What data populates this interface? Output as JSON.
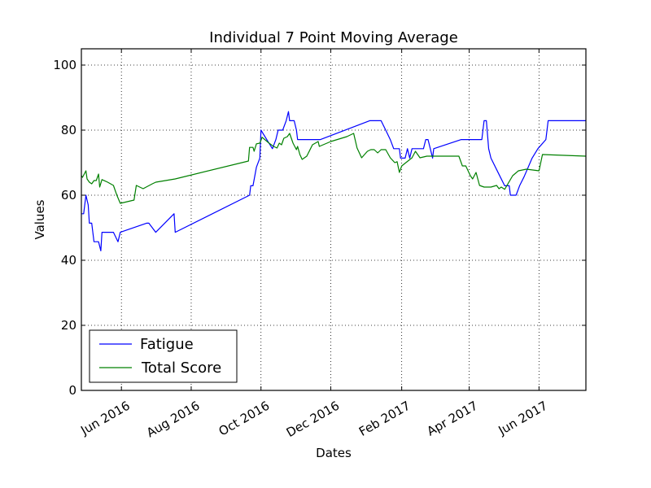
{
  "chart_data": {
    "type": "line",
    "title": "Individual 7 Point Moving Average",
    "xlabel": "Dates",
    "ylabel": "Values",
    "ylim": [
      0,
      105
    ],
    "xlim": [
      "2016-04-27",
      "2017-07-12"
    ],
    "grid": true,
    "legend_position": "bottom-left",
    "x_ticks": [
      {
        "date": "2016-06-01",
        "label": "Jun 2016"
      },
      {
        "date": "2016-08-01",
        "label": "Aug 2016"
      },
      {
        "date": "2016-10-01",
        "label": "Oct 2016"
      },
      {
        "date": "2016-12-01",
        "label": "Dec 2016"
      },
      {
        "date": "2017-02-01",
        "label": "Feb 2017"
      },
      {
        "date": "2017-04-01",
        "label": "Apr 2017"
      },
      {
        "date": "2017-06-01",
        "label": "Jun 2017"
      }
    ],
    "y_ticks": [
      0,
      20,
      40,
      60,
      80,
      100
    ],
    "series": [
      {
        "name": "Fatigue",
        "color": "#0000ff",
        "points": [
          [
            "2016-04-27",
            54.3
          ],
          [
            "2016-04-29",
            54.3
          ],
          [
            "2016-05-01",
            60
          ],
          [
            "2016-05-03",
            57
          ],
          [
            "2016-05-04",
            51.4
          ],
          [
            "2016-05-06",
            51.4
          ],
          [
            "2016-05-08",
            45.7
          ],
          [
            "2016-05-12",
            45.7
          ],
          [
            "2016-05-14",
            42.9
          ],
          [
            "2016-05-15",
            48.6
          ],
          [
            "2016-05-25",
            48.6
          ],
          [
            "2016-05-29",
            45.7
          ],
          [
            "2016-05-31",
            48.6
          ],
          [
            "2016-06-23",
            51.4
          ],
          [
            "2016-06-25",
            51.4
          ],
          [
            "2016-07-01",
            48.6
          ],
          [
            "2016-07-17",
            54.3
          ],
          [
            "2016-07-18",
            48.6
          ],
          [
            "2016-09-21",
            60
          ],
          [
            "2016-09-22",
            62.9
          ],
          [
            "2016-09-24",
            62.9
          ],
          [
            "2016-09-27",
            68.6
          ],
          [
            "2016-09-30",
            71.4
          ],
          [
            "2016-10-01",
            80
          ],
          [
            "2016-10-06",
            77.1
          ],
          [
            "2016-10-11",
            74.3
          ],
          [
            "2016-10-14",
            77.1
          ],
          [
            "2016-10-16",
            80
          ],
          [
            "2016-10-20",
            80
          ],
          [
            "2016-10-23",
            82.9
          ],
          [
            "2016-10-25",
            85.7
          ],
          [
            "2016-10-26",
            82.9
          ],
          [
            "2016-10-30",
            82.9
          ],
          [
            "2016-11-01",
            80
          ],
          [
            "2016-11-02",
            77.1
          ],
          [
            "2016-11-11",
            77.1
          ],
          [
            "2016-11-16",
            77.1
          ],
          [
            "2016-11-22",
            77.1
          ],
          [
            "2017-01-04",
            82.9
          ],
          [
            "2017-01-14",
            82.9
          ],
          [
            "2017-01-18",
            80
          ],
          [
            "2017-01-22",
            77.1
          ],
          [
            "2017-01-25",
            74.3
          ],
          [
            "2017-01-30",
            74.3
          ],
          [
            "2017-01-31",
            71.4
          ],
          [
            "2017-02-04",
            71.4
          ],
          [
            "2017-02-06",
            74.3
          ],
          [
            "2017-02-08",
            71.4
          ],
          [
            "2017-02-10",
            74.3
          ],
          [
            "2017-02-20",
            74.3
          ],
          [
            "2017-02-22",
            77.1
          ],
          [
            "2017-02-24",
            77.1
          ],
          [
            "2017-02-26",
            74.3
          ],
          [
            "2017-02-28",
            71.4
          ],
          [
            "2017-03-01",
            74.3
          ],
          [
            "2017-03-25",
            77.1
          ],
          [
            "2017-04-05",
            77.1
          ],
          [
            "2017-04-12",
            77.1
          ],
          [
            "2017-04-14",
            82.9
          ],
          [
            "2017-04-16",
            82.9
          ],
          [
            "2017-04-18",
            74.3
          ],
          [
            "2017-04-20",
            71.4
          ],
          [
            "2017-04-28",
            65.7
          ],
          [
            "2017-05-02",
            62.9
          ],
          [
            "2017-05-06",
            62.9
          ],
          [
            "2017-05-07",
            60
          ],
          [
            "2017-05-12",
            60
          ],
          [
            "2017-05-15",
            62.9
          ],
          [
            "2017-05-19",
            65.7
          ],
          [
            "2017-05-26",
            71.4
          ],
          [
            "2017-05-31",
            74.3
          ],
          [
            "2017-06-07",
            77.1
          ],
          [
            "2017-06-09",
            82.9
          ],
          [
            "2017-06-17",
            82.9
          ],
          [
            "2017-07-12",
            82.9
          ]
        ]
      },
      {
        "name": "Total Score",
        "color": "#008000",
        "points": [
          [
            "2016-04-27",
            66
          ],
          [
            "2016-04-28",
            65.5
          ],
          [
            "2016-05-01",
            67.5
          ],
          [
            "2016-05-02",
            65
          ],
          [
            "2016-05-04",
            64
          ],
          [
            "2016-05-06",
            63.5
          ],
          [
            "2016-05-08",
            64.5
          ],
          [
            "2016-05-10",
            64.5
          ],
          [
            "2016-05-12",
            66.5
          ],
          [
            "2016-05-13",
            62.5
          ],
          [
            "2016-05-15",
            64.8
          ],
          [
            "2016-05-20",
            64
          ],
          [
            "2016-05-25",
            63
          ],
          [
            "2016-05-28",
            60
          ],
          [
            "2016-05-31",
            57.5
          ],
          [
            "2016-06-12",
            58.5
          ],
          [
            "2016-06-14",
            63
          ],
          [
            "2016-06-20",
            62
          ],
          [
            "2016-06-28",
            63.5
          ],
          [
            "2016-07-01",
            64
          ],
          [
            "2016-07-18",
            65
          ],
          [
            "2016-09-20",
            70.5
          ],
          [
            "2016-09-21",
            74.7
          ],
          [
            "2016-09-24",
            74.7
          ],
          [
            "2016-09-25",
            73.5
          ],
          [
            "2016-09-27",
            75.8
          ],
          [
            "2016-09-30",
            76
          ],
          [
            "2016-10-02",
            77.8
          ],
          [
            "2016-10-08",
            76
          ],
          [
            "2016-10-12",
            75
          ],
          [
            "2016-10-15",
            74.5
          ],
          [
            "2016-10-17",
            76
          ],
          [
            "2016-10-19",
            75.5
          ],
          [
            "2016-10-21",
            77.5
          ],
          [
            "2016-10-24",
            78
          ],
          [
            "2016-10-26",
            79
          ],
          [
            "2016-10-29",
            76
          ],
          [
            "2016-11-01",
            74
          ],
          [
            "2016-11-02",
            75
          ],
          [
            "2016-11-04",
            72.5
          ],
          [
            "2016-11-06",
            71
          ],
          [
            "2016-11-10",
            72
          ],
          [
            "2016-11-15",
            75.5
          ],
          [
            "2016-11-20",
            76.5
          ],
          [
            "2016-11-21",
            75
          ],
          [
            "2016-12-01",
            76.5
          ],
          [
            "2016-12-15",
            78
          ],
          [
            "2016-12-21",
            79
          ],
          [
            "2016-12-24",
            74.5
          ],
          [
            "2016-12-28",
            71.5
          ],
          [
            "2017-01-02",
            73.5
          ],
          [
            "2017-01-05",
            74
          ],
          [
            "2017-01-08",
            74
          ],
          [
            "2017-01-11",
            73
          ],
          [
            "2017-01-14",
            74
          ],
          [
            "2017-01-18",
            74
          ],
          [
            "2017-01-22",
            71.5
          ],
          [
            "2017-01-26",
            70
          ],
          [
            "2017-01-28",
            70.3
          ],
          [
            "2017-01-30",
            67
          ],
          [
            "2017-02-01",
            69
          ],
          [
            "2017-02-10",
            71.5
          ],
          [
            "2017-02-13",
            73.5
          ],
          [
            "2017-02-16",
            72
          ],
          [
            "2017-02-17",
            71.5
          ],
          [
            "2017-02-23",
            72
          ],
          [
            "2017-03-20",
            72
          ],
          [
            "2017-03-23",
            72
          ],
          [
            "2017-03-26",
            69
          ],
          [
            "2017-03-29",
            69
          ],
          [
            "2017-04-02",
            66
          ],
          [
            "2017-04-04",
            65
          ],
          [
            "2017-04-07",
            67
          ],
          [
            "2017-04-10",
            63
          ],
          [
            "2017-04-14",
            62.5
          ],
          [
            "2017-04-20",
            62.5
          ],
          [
            "2017-04-25",
            63
          ],
          [
            "2017-04-27",
            62
          ],
          [
            "2017-04-29",
            62.5
          ],
          [
            "2017-05-02",
            61.8
          ],
          [
            "2017-05-09",
            66
          ],
          [
            "2017-05-14",
            67.5
          ],
          [
            "2017-05-21",
            68
          ],
          [
            "2017-06-01",
            67.5
          ],
          [
            "2017-06-04",
            72.5
          ],
          [
            "2017-07-12",
            72
          ]
        ]
      }
    ]
  }
}
